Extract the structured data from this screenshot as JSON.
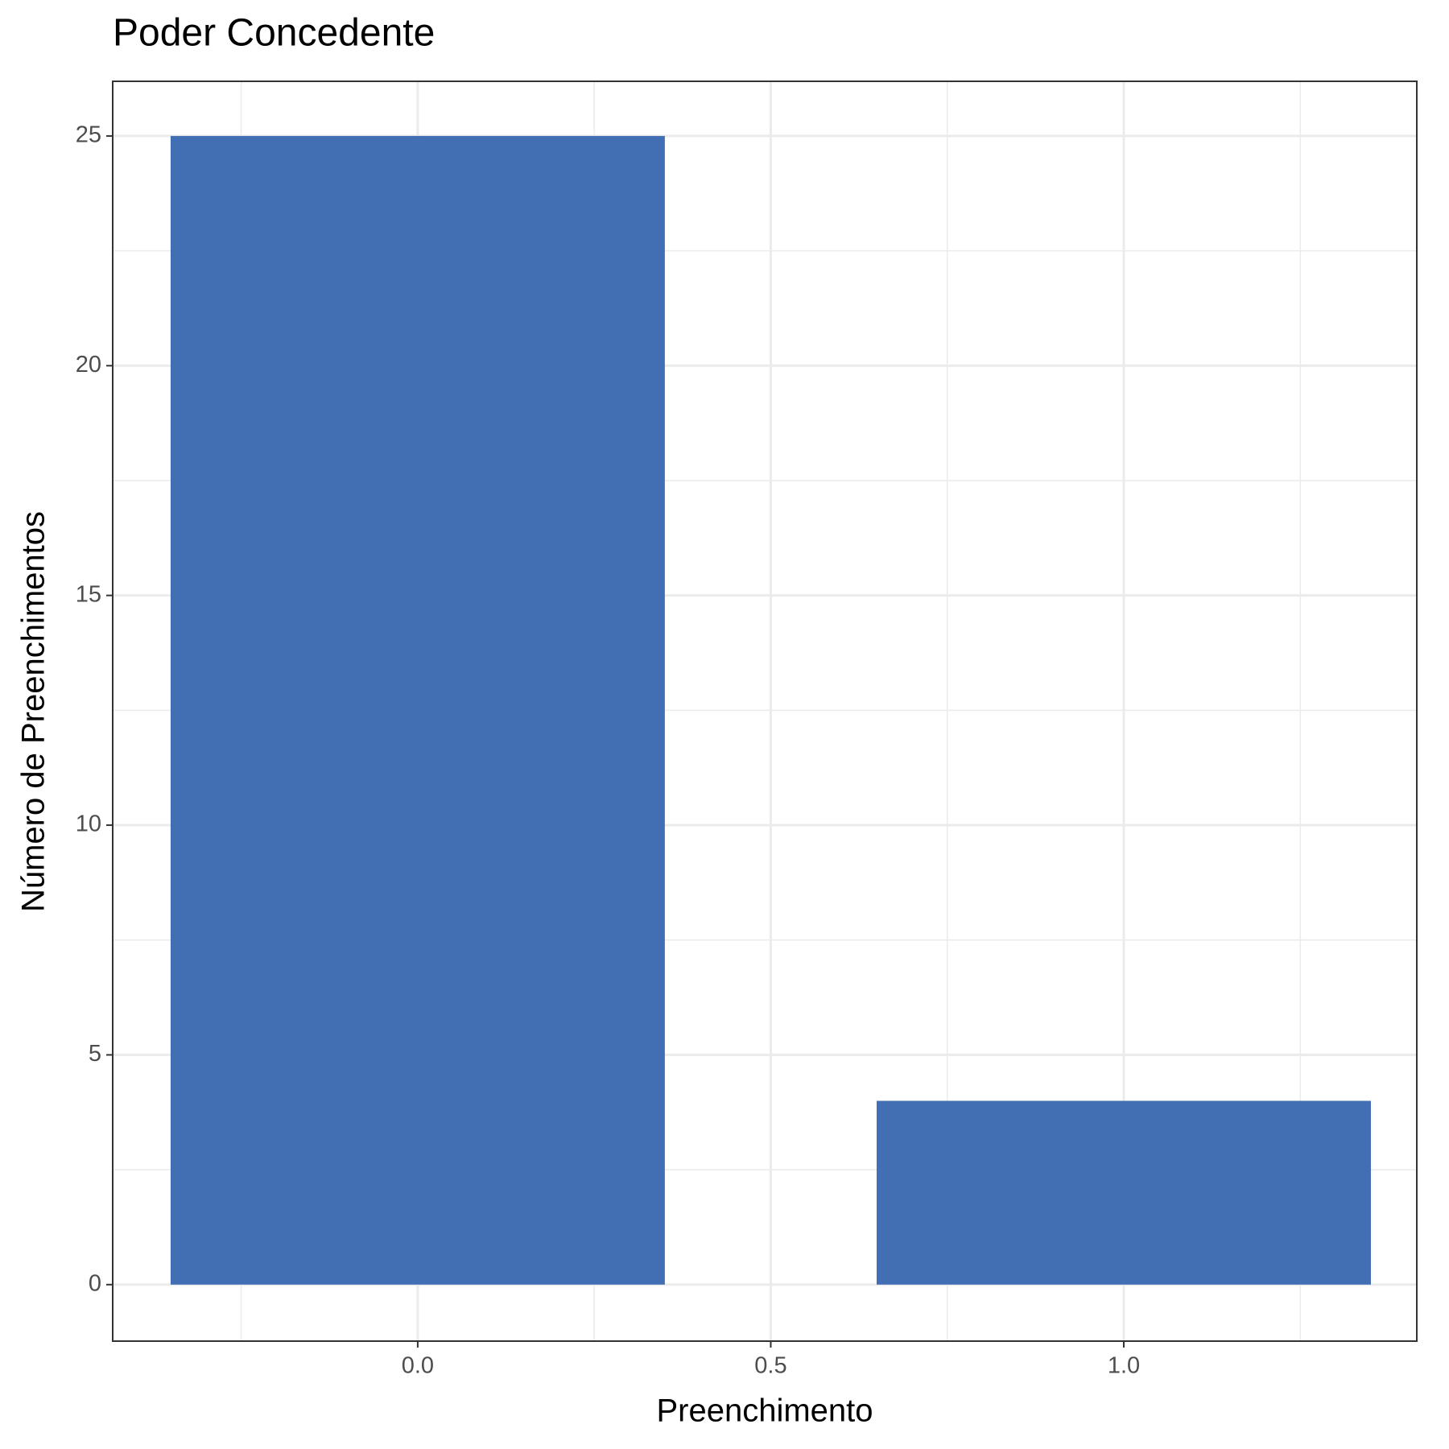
{
  "chart_data": {
    "type": "bar",
    "title": "Poder Concedente",
    "x_label": "Preenchimento",
    "y_label": "Número de Preenchimentos",
    "x": [
      0,
      1
    ],
    "values": [
      25,
      4
    ],
    "color": "#426eb4",
    "bar_width": 0.7,
    "xlim": [
      -0.432,
      1.415
    ],
    "ylim": [
      -1.23,
      26.19
    ],
    "xticks": [
      {
        "value": 0,
        "label": "0.0"
      },
      {
        "value": 0.5,
        "label": "0.5"
      },
      {
        "value": 1,
        "label": "1.0"
      }
    ],
    "yticks": [
      0,
      5,
      10,
      15,
      20,
      25
    ],
    "grid": true
  }
}
